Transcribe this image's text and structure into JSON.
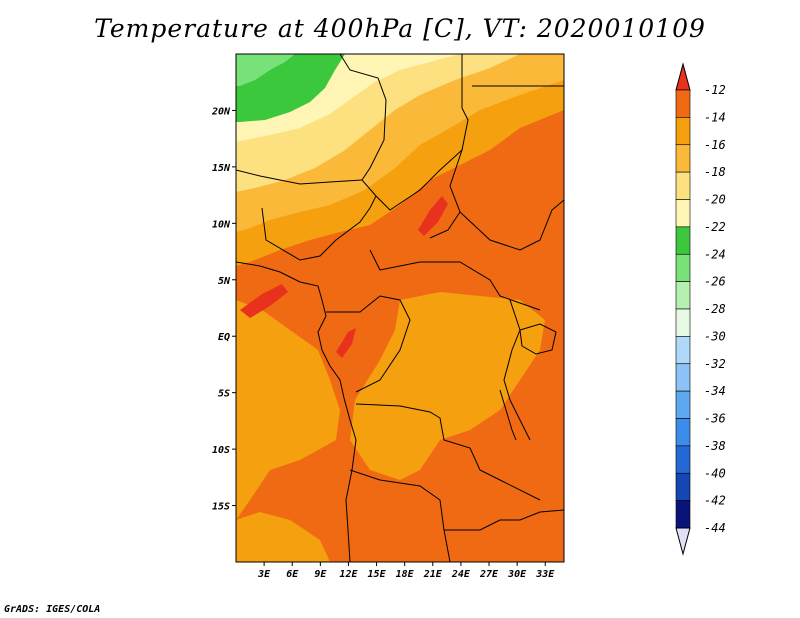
{
  "title": "Temperature at 400hPa [C], VT: 2020010109",
  "credit": "GrADS: IGES/COLA",
  "map": {
    "variable": "Temperature",
    "level": "400hPa",
    "units": "C",
    "valid_time": "2020010109",
    "lon_range": [
      0,
      35
    ],
    "lat_range": [
      -20,
      25
    ],
    "x_ticks": [
      {
        "value": 3,
        "label": "3E"
      },
      {
        "value": 6,
        "label": "6E"
      },
      {
        "value": 9,
        "label": "9E"
      },
      {
        "value": 12,
        "label": "12E"
      },
      {
        "value": 15,
        "label": "15E"
      },
      {
        "value": 18,
        "label": "18E"
      },
      {
        "value": 21,
        "label": "21E"
      },
      {
        "value": 24,
        "label": "24E"
      },
      {
        "value": 27,
        "label": "27E"
      },
      {
        "value": 30,
        "label": "30E"
      },
      {
        "value": 33,
        "label": "33E"
      }
    ],
    "y_ticks": [
      {
        "value": 20,
        "label": "20N"
      },
      {
        "value": 15,
        "label": "15N"
      },
      {
        "value": 10,
        "label": "10N"
      },
      {
        "value": 5,
        "label": "5N"
      },
      {
        "value": 0,
        "label": "EQ"
      },
      {
        "value": -5,
        "label": "5S"
      },
      {
        "value": -10,
        "label": "10S"
      },
      {
        "value": -15,
        "label": "15S"
      }
    ]
  },
  "colorbar": {
    "levels": [
      "-12",
      "-14",
      "-16",
      "-18",
      "-20",
      "-22",
      "-24",
      "-26",
      "-28",
      "-30",
      "-32",
      "-34",
      "-36",
      "-38",
      "-40",
      "-42",
      "-44"
    ],
    "colors": [
      "#e8321e",
      "#f06a14",
      "#f5a00f",
      "#fab938",
      "#fde080",
      "#fff5b5",
      "#3cc83c",
      "#78e278",
      "#b6f0b0",
      "#e6fae6",
      "#b0d8f8",
      "#8cc2f5",
      "#5ea8f0",
      "#3c8ceb",
      "#2468d6",
      "#1446b4",
      "#0a1478",
      "#e0e0f8"
    ]
  }
}
